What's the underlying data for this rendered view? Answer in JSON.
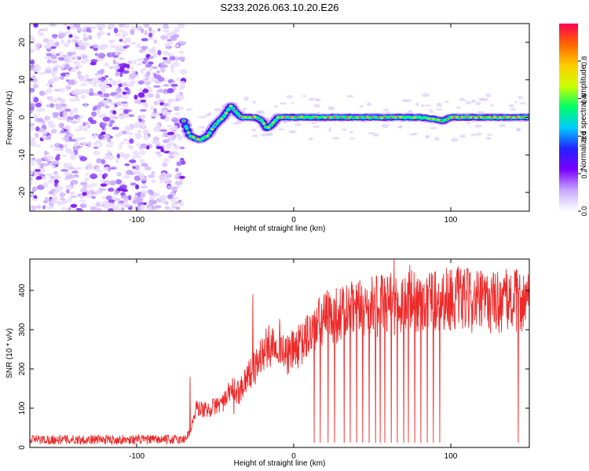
{
  "figure_title": "S233.2026.063.10.20.E26",
  "chart_data": [
    {
      "type": "heatmap",
      "title": "S233.2026.063.10.20.E26",
      "xlabel": "Height of straight line (km)",
      "ylabel": "Frequency (Hz)",
      "xlim": [
        -168,
        150
      ],
      "ylim": [
        -25,
        25
      ],
      "xticks": [
        -100,
        0,
        100
      ],
      "yticks": [
        -20,
        -10,
        0,
        10,
        20
      ],
      "xtick_labels": [
        "-100",
        "0",
        "100"
      ],
      "ytick_labels": [
        "-20",
        "-10",
        "0",
        "10",
        "20"
      ],
      "noise_region_x": [
        -168,
        -70
      ],
      "track": {
        "x": [
          -70,
          -66,
          -60,
          -55,
          -50,
          -45,
          -40,
          -36,
          -33,
          -28,
          -24,
          -20,
          -17,
          -14,
          -10,
          -5,
          0,
          20,
          50,
          80,
          90,
          95,
          100,
          150
        ],
        "y": [
          -1,
          -5,
          -6,
          -5,
          -2,
          0,
          3,
          1,
          0,
          0,
          0,
          -1,
          -3,
          -2,
          0,
          0,
          0,
          0,
          0,
          0,
          -0.5,
          -1,
          0,
          0
        ]
      },
      "colorbar": {
        "label": "Normalized spectral amplitude",
        "range": [
          0.0,
          1.0
        ],
        "ticks": [
          0.0,
          0.2,
          0.4,
          0.6,
          0.8
        ],
        "tick_labels": [
          "0.0",
          "0.2",
          "0.4",
          "0.6",
          "0.8"
        ],
        "colors": [
          "#ffffff",
          "#c8a8ff",
          "#7b00ff",
          "#2222ff",
          "#00ccff",
          "#00ff66",
          "#ccff00",
          "#ffcc00",
          "#ff6600",
          "#ff0055"
        ]
      }
    },
    {
      "type": "line",
      "xlabel": "Height of straight line (km)",
      "ylabel": "SNR (10 * v/v)",
      "xlim": [
        -168,
        150
      ],
      "ylim": [
        0,
        480
      ],
      "xticks": [
        -100,
        0,
        100
      ],
      "yticks": [
        0,
        100,
        200,
        300,
        400
      ],
      "xtick_labels": [
        "-100",
        "0",
        "100"
      ],
      "ytick_labels": [
        "0",
        "100",
        "200",
        "300",
        "400"
      ],
      "line_color": "#ee2a2a",
      "envelope": {
        "x": [
          -168,
          -70,
          -66,
          -62,
          -55,
          -48,
          -43,
          -40,
          -35,
          -30,
          -25,
          -20,
          -15,
          -10,
          -5,
          0,
          5,
          10,
          20,
          40,
          60,
          80,
          100,
          120,
          150
        ],
        "y": [
          20,
          20,
          40,
          100,
          95,
          110,
          120,
          150,
          140,
          180,
          200,
          240,
          260,
          280,
          230,
          250,
          260,
          290,
          330,
          350,
          365,
          375,
          380,
          370,
          375
        ]
      },
      "noise_amplitude": 12,
      "spikes": [
        {
          "x": -66,
          "y": 180
        },
        {
          "x": -38,
          "y": 85
        },
        {
          "x": -26,
          "y": 390
        },
        {
          "x": 64,
          "y": 480
        },
        {
          "x": 74,
          "y": 465
        }
      ],
      "dropouts_x": [
        13,
        17,
        22,
        26,
        32,
        36,
        40,
        44,
        48,
        52,
        55,
        58,
        62,
        66,
        70,
        73,
        77,
        81,
        85,
        89,
        93,
        143
      ],
      "dropout_floor": 12
    }
  ]
}
